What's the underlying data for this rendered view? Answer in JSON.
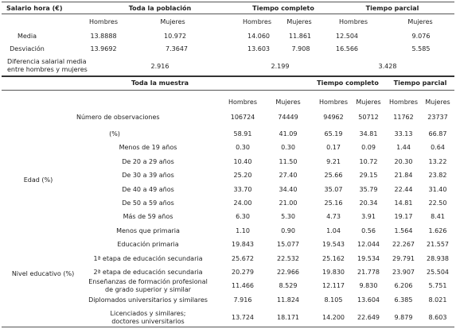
{
  "top": {
    "headers": {
      "salary": "Salario hora (€)",
      "total": "Toda la población",
      "full": "Tiempo completo",
      "part": "Tiempo parcial"
    },
    "sex": {
      "men": "Hombres",
      "women": "Mujeres"
    },
    "rows": [
      {
        "label": "Media",
        "values": [
          "13.8888",
          "10.972",
          "14.060",
          "11.861",
          "12.504",
          "9.076"
        ]
      },
      {
        "label": "Desviación",
        "values": [
          "13.9692",
          "7.3647",
          "13.603",
          "7.908",
          "16.566",
          "5.585"
        ]
      }
    ],
    "gap": {
      "label_line1": "Diferencia salarial media",
      "label_line2": "entre hombres y mujeres",
      "total": "2.916",
      "full": "2.199",
      "part": "3.428"
    }
  },
  "bottom": {
    "headers": {
      "sample": "Toda la muestra",
      "full": "Tiempo completo",
      "part": "Tiempo parcial"
    },
    "sex": {
      "men": "Hombres",
      "women": "Mujeres"
    },
    "observations": {
      "label": "Número de observaciones",
      "values": [
        "106724",
        "74449",
        "94962",
        "50712",
        "11762",
        "23737"
      ]
    },
    "percent": {
      "label": "(%)",
      "values": [
        "58.91",
        "41.09",
        "65.19",
        "34.81",
        "33.13",
        "66.87"
      ]
    },
    "age_group": "Edad (%)",
    "age": [
      {
        "label": "Menos de 19 años",
        "values": [
          "0.30",
          "0.30",
          "0.17",
          "0.09",
          "1.44",
          "0.64"
        ]
      },
      {
        "label": "De 20 a 29 años",
        "values": [
          "10.40",
          "11.50",
          "9.21",
          "10.72",
          "20.30",
          "13.22"
        ]
      },
      {
        "label": "De 30 a 39 años",
        "values": [
          "25.20",
          "27.40",
          "25.66",
          "29.15",
          "21.84",
          "23.82"
        ]
      },
      {
        "label": "De 40 a 49 años",
        "values": [
          "33.70",
          "34.40",
          "35.07",
          "35.79",
          "22.44",
          "31.40"
        ]
      },
      {
        "label": "De 50 a 59 años",
        "values": [
          "24.00",
          "21.00",
          "25.16",
          "20.34",
          "14.81",
          "22.50"
        ]
      },
      {
        "label": "Más de 59 años",
        "values": [
          "6.30",
          "5.30",
          "4.73",
          "3.91",
          "19.17",
          "8.41"
        ]
      }
    ],
    "edu_group": "Nivel educativo (%)",
    "edu": [
      {
        "lines": [
          "Menos que primaria"
        ],
        "values": [
          "1.10",
          "0.90",
          "1.04",
          "0.56",
          "1.564",
          "1.626"
        ]
      },
      {
        "lines": [
          "Educación primaria"
        ],
        "values": [
          "19.843",
          "15.077",
          "19.543",
          "12.044",
          "22.267",
          "21.557"
        ]
      },
      {
        "lines": [
          "1ª etapa de educación secundaria"
        ],
        "values": [
          "25.672",
          "22.532",
          "25.162",
          "19.534",
          "29.791",
          "28.938"
        ]
      },
      {
        "lines": [
          "2ª etapa de educación secundaria"
        ],
        "values": [
          "20.279",
          "22.966",
          "19.830",
          "21.778",
          "23.907",
          "25.504"
        ]
      },
      {
        "lines": [
          "Enseñanzas de formación profesional",
          "de grado superior y similar"
        ],
        "values": [
          "11.466",
          "8.529",
          "12.117",
          "9.830",
          "6.206",
          "5.751"
        ]
      },
      {
        "lines": [
          "Diplomados universitarios y similares"
        ],
        "values": [
          "7.916",
          "11.824",
          "8.105",
          "13.604",
          "6.385",
          "8.021"
        ]
      },
      {
        "lines": [
          "Licenciados y similares;",
          "doctores universitarios"
        ],
        "values": [
          "13.724",
          "18.171",
          "14.200",
          "22.649",
          "9.879",
          "8.603"
        ]
      }
    ]
  }
}
